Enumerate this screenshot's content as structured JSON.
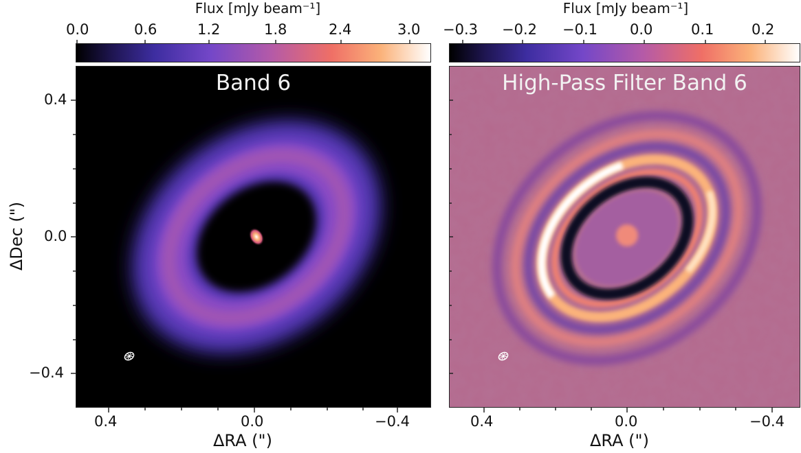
{
  "left_panel": {
    "title": "Band 6",
    "colorbar": {
      "label": "Flux [mJy beam⁻¹]",
      "ticks": [
        "0.0",
        "0.6",
        "1.2",
        "1.8",
        "2.4",
        "3.0"
      ],
      "colors": [
        "#000000",
        "#2a1b6e",
        "#6a3fc2",
        "#b45aa8",
        "#ef6f66",
        "#fbb27a",
        "#ffffff"
      ]
    },
    "yticks": [
      "0.4",
      "0.0",
      "−0.4"
    ],
    "xticks": [
      "0.4",
      "0.0",
      "−0.4"
    ],
    "ylabel": "ΔDec (\")",
    "xlabel": "ΔRA (\")"
  },
  "right_panel": {
    "title": "High-Pass Filter Band 6",
    "colorbar": {
      "label": "Flux [mJy beam⁻¹]",
      "ticks": [
        "−0.3",
        "−0.2",
        "−0.1",
        "0.0",
        "0.1",
        "0.2"
      ],
      "colors": [
        "#000000",
        "#2a1b6e",
        "#6a3fc2",
        "#b45aa8",
        "#ef6f66",
        "#fbb27a",
        "#ffffff"
      ]
    },
    "xticks": [
      "0.4",
      "0.0",
      "−0.4"
    ],
    "xlabel": "ΔRA (\")"
  }
}
